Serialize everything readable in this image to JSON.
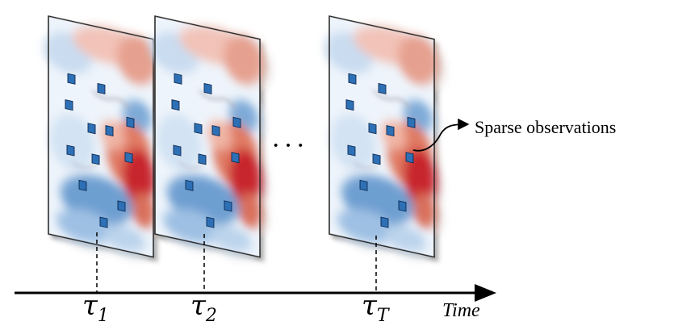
{
  "frames": [
    {
      "name": "frame-1",
      "time_symbol": "τ",
      "time_subscript": "1"
    },
    {
      "name": "frame-2",
      "time_symbol": "τ",
      "time_subscript": "2"
    },
    {
      "name": "frame-T",
      "time_symbol": "τ",
      "time_subscript": "T"
    }
  ],
  "ellipsis": "···",
  "annotation": "Sparse observations",
  "axis": {
    "label": "Time"
  },
  "colors": {
    "observation_fill": "#2e6fb5",
    "observation_stroke": "#0d2f5a",
    "warm": "#c8282d",
    "cool": "#5c8fc7",
    "axis": "#000000"
  }
}
